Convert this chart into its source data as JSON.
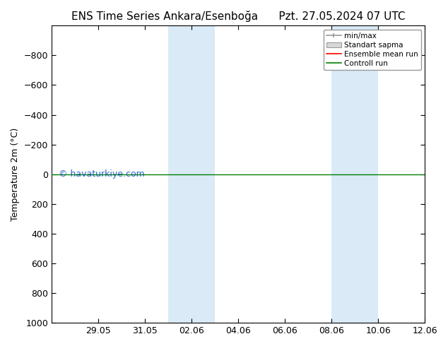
{
  "title_left": "ENS Time Series Ankara/Esenboğa",
  "title_right": "Pzt. 27.05.2024 07 UTC",
  "ylabel": "Temperature 2m (°C)",
  "watermark": "© havaturkiye.com",
  "ylim_bottom": 1000,
  "ylim_top": -1000,
  "yticks": [
    -800,
    -600,
    -400,
    -200,
    0,
    200,
    400,
    600,
    800,
    1000
  ],
  "xtick_labels": [
    "29.05",
    "31.05",
    "02.06",
    "04.06",
    "06.06",
    "08.06",
    "10.06",
    "12.06"
  ],
  "shaded_bands": [
    {
      "x_start": 5,
      "x_end": 7,
      "color": "#daeaf7"
    },
    {
      "x_start": 12,
      "x_end": 14,
      "color": "#daeaf7"
    }
  ],
  "green_line_y": 0,
  "red_line_y": 0,
  "legend_labels": [
    "min/max",
    "Standart sapma",
    "Ensemble mean run",
    "Controll run"
  ],
  "legend_colors": [
    "#999999",
    "#cccccc",
    "#ff0000",
    "#008000"
  ],
  "background_color": "#ffffff",
  "title_fontsize": 11,
  "axis_fontsize": 9,
  "xlim": [
    0,
    16
  ],
  "xtick_positions": [
    2,
    4,
    6,
    8,
    10,
    12,
    14,
    16
  ]
}
